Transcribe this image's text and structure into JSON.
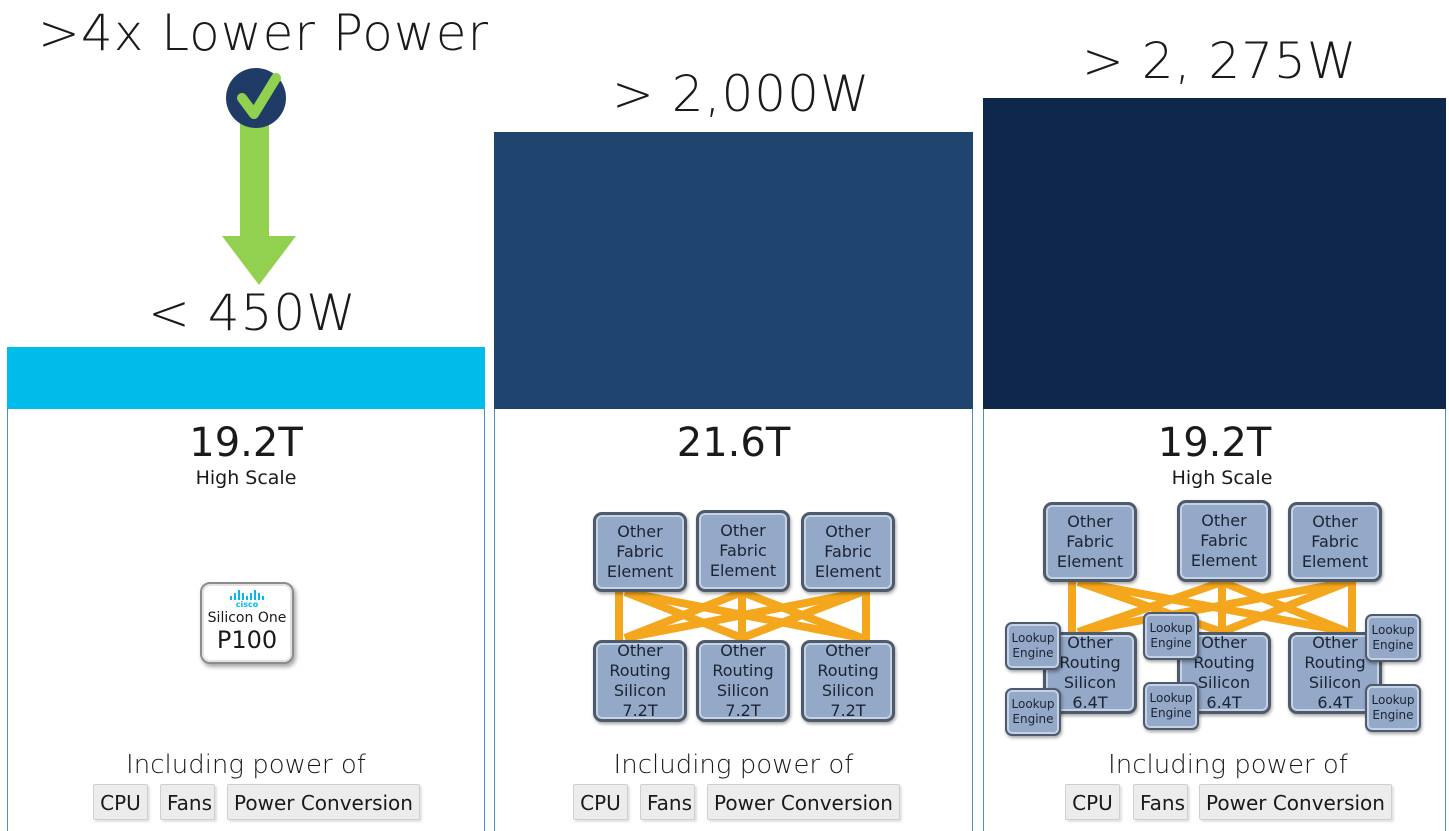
{
  "colors": {
    "cyan_bar": "#00bceb",
    "mid_bar": "#1f456e",
    "dark_bar": "#0f274a",
    "arrow_green": "#92d050",
    "check_circle": "#1f3b66",
    "mesh": "#f4a71d",
    "column_border": "#4a90c8"
  },
  "col1": {
    "headline": ">4x Lower Power",
    "power": "< 450W",
    "capacity": "19.2T",
    "subtitle": "High Scale",
    "badge": {
      "logo_text": "cisco",
      "line1": "Silicon One",
      "line2": "P100"
    },
    "including": "Including power of",
    "chips": [
      "CPU",
      "Fans",
      "Power Conversion"
    ],
    "icons": [
      "check-icon",
      "down-arrow-icon",
      "cisco-logo-icon"
    ]
  },
  "col2": {
    "power": "> 2,000W",
    "capacity": "21.6T",
    "fabric": [
      [
        "Other",
        "Fabric",
        "Element"
      ],
      [
        "Other",
        "Fabric",
        "Element"
      ],
      [
        "Other",
        "Fabric",
        "Element"
      ]
    ],
    "routing": [
      [
        "Other",
        "Routing",
        "Silicon",
        "7.2T"
      ],
      [
        "Other",
        "Routing",
        "Silicon",
        "7.2T"
      ],
      [
        "Other",
        "Routing",
        "Silicon",
        "7.2T"
      ]
    ],
    "including": "Including power of",
    "chips": [
      "CPU",
      "Fans",
      "Power Conversion"
    ]
  },
  "col3": {
    "power": "> 2, 275W",
    "capacity": "19.2T",
    "subtitle": "High Scale",
    "fabric": [
      [
        "Other",
        "Fabric",
        "Element"
      ],
      [
        "Other",
        "Fabric",
        "Element"
      ],
      [
        "Other",
        "Fabric",
        "Element"
      ]
    ],
    "routing": [
      [
        "Other",
        "Routing",
        "Silicon",
        "6.4T"
      ],
      [
        "Other",
        "Routing",
        "Silicon",
        "6.4T"
      ],
      [
        "Other",
        "Routing",
        "Silicon",
        "6.4T"
      ]
    ],
    "lookup": [
      "Lookup",
      "Engine"
    ],
    "including": "Including power of",
    "chips": [
      "CPU",
      "Fans",
      "Power Conversion"
    ]
  }
}
